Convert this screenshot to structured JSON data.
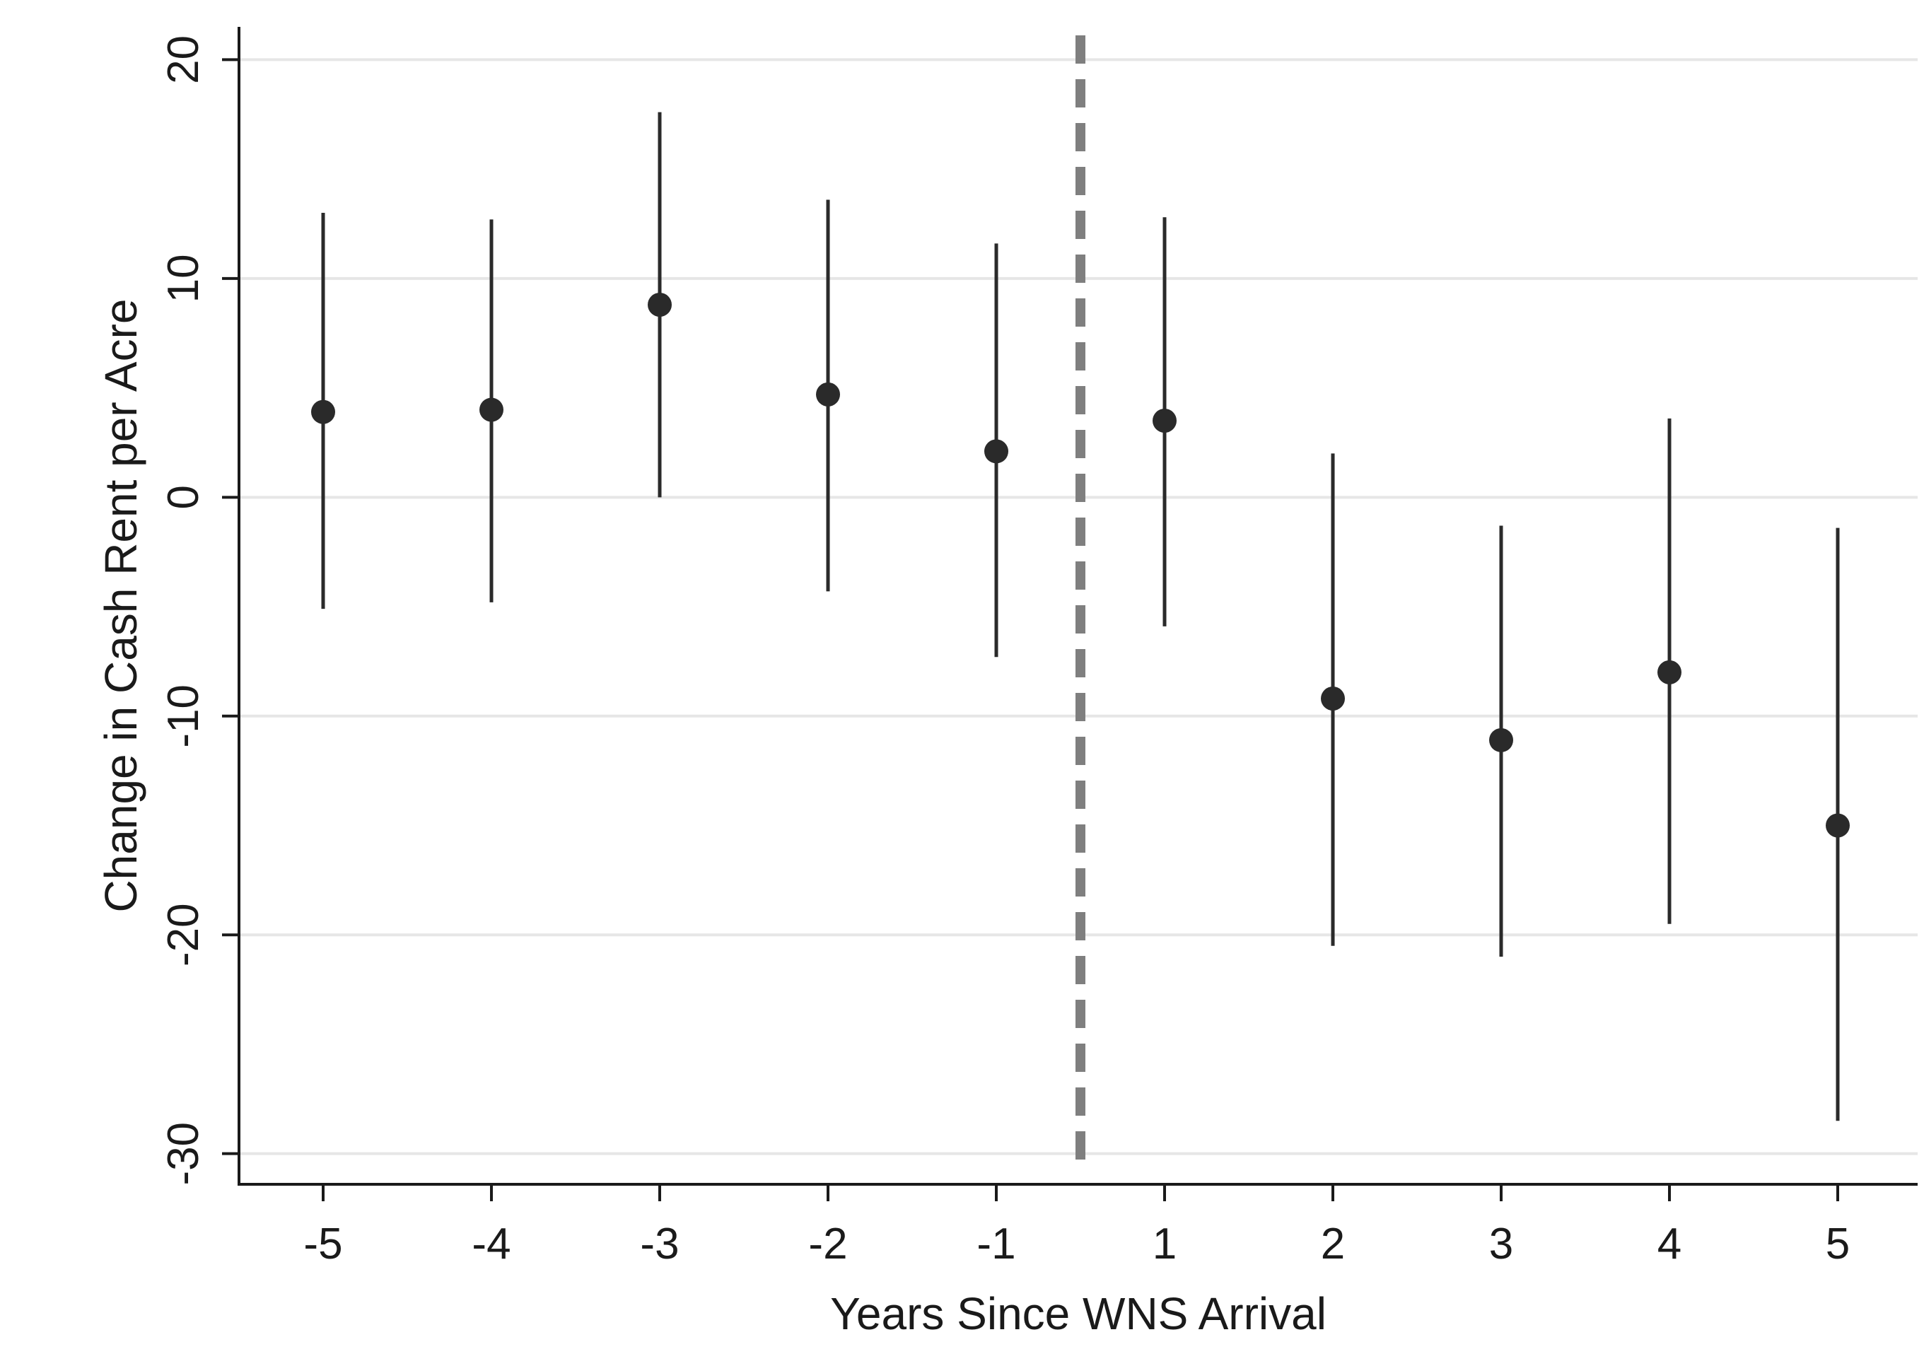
{
  "chart_data": {
    "type": "scatter",
    "title": "",
    "xlabel": "Years Since WNS Arrival",
    "ylabel": "Change in Cash Rent per Acre",
    "x_ticks": [
      "-5",
      "-4",
      "-3",
      "-2",
      "-1",
      "1",
      "2",
      "3",
      "4",
      "5"
    ],
    "y_ticks": [
      20,
      10,
      0,
      -10,
      -20,
      -30
    ],
    "ylim": [
      -31.4,
      21.5
    ],
    "grid": "horizontal",
    "legend": "none",
    "reference_line": {
      "position_between": [
        "-1",
        "1"
      ],
      "style": "dashed",
      "color": "#7f7f7f"
    },
    "series": [
      {
        "x": [
          "-5",
          "-4",
          "-3",
          "-2",
          "-1",
          "1",
          "2",
          "3",
          "4",
          "5"
        ],
        "estimate": [
          3.9,
          4.0,
          8.8,
          4.7,
          2.1,
          3.5,
          -9.2,
          -11.1,
          -8.0,
          -15.0
        ],
        "ci_low": [
          -5.1,
          -4.8,
          0.0,
          -4.3,
          -7.3,
          -5.9,
          -20.5,
          -21.0,
          -19.5,
          -28.5
        ],
        "ci_high": [
          13.0,
          12.7,
          17.6,
          13.6,
          11.6,
          12.8,
          2.0,
          -1.3,
          3.6,
          -1.4
        ]
      }
    ],
    "colors": {
      "marker": "#2a2a2a",
      "grid": "#e6e6e6",
      "axis": "#1a1a1a",
      "dashed_line": "#7f7f7f"
    }
  }
}
